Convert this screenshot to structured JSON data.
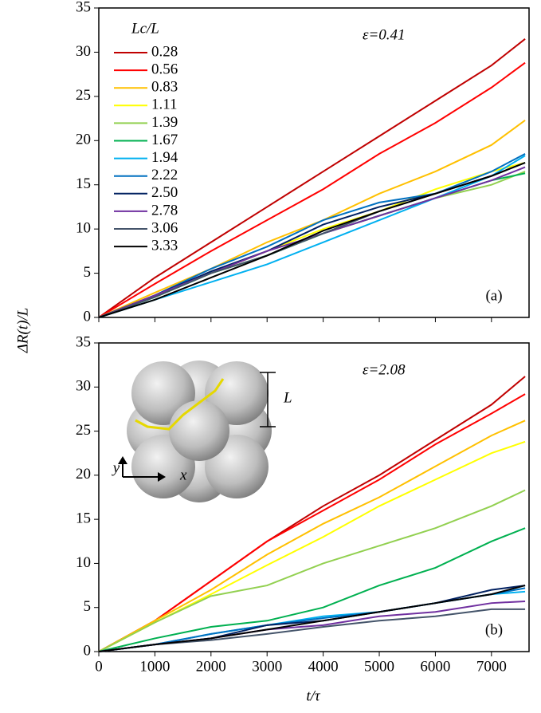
{
  "chart_data": [
    {
      "type": "line",
      "ylabel": "ΔR(t)/L",
      "legend_title": "Lc/L",
      "annotation": "ε=0.41",
      "panel_label": "(a)",
      "x": [
        0,
        1000,
        2000,
        3000,
        4000,
        5000,
        6000,
        7000,
        7600
      ],
      "xlim": [
        0,
        7670
      ],
      "xticks": [
        0,
        1000,
        2000,
        3000,
        4000,
        5000,
        6000,
        7000
      ],
      "show_xtick_labels": false,
      "ylim": [
        0,
        35
      ],
      "yticks": [
        0,
        5,
        10,
        15,
        20,
        25,
        30,
        35
      ],
      "legend": "upper left",
      "series": [
        {
          "name": "0.28",
          "color": "#c00000",
          "values": [
            0,
            4.5,
            8.5,
            12.5,
            16.5,
            20.5,
            24.5,
            28.5,
            31.5
          ]
        },
        {
          "name": "0.56",
          "color": "#ff0000",
          "values": [
            0,
            3.8,
            7.5,
            11,
            14.5,
            18.5,
            22,
            26,
            28.8
          ]
        },
        {
          "name": "0.83",
          "color": "#ffc000",
          "values": [
            0,
            2.8,
            5.5,
            8.5,
            11,
            14,
            16.5,
            19.5,
            22.3
          ]
        },
        {
          "name": "1.11",
          "color": "#ffff00",
          "values": [
            0,
            2.5,
            5,
            7.5,
            10,
            12,
            14.5,
            16.5,
            17.5
          ]
        },
        {
          "name": "1.39",
          "color": "#92d050",
          "values": [
            0,
            2.3,
            5,
            7,
            9.5,
            11.5,
            13.5,
            15,
            16.5
          ]
        },
        {
          "name": "1.67",
          "color": "#00b050",
          "values": [
            0,
            2.3,
            5,
            7,
            9.5,
            11.5,
            13.5,
            15.5,
            16.3
          ]
        },
        {
          "name": "1.94",
          "color": "#00b0f0",
          "values": [
            0,
            2,
            4,
            6,
            8.5,
            11,
            13.5,
            16,
            18.3
          ]
        },
        {
          "name": "2.22",
          "color": "#0070c0",
          "values": [
            0,
            2.5,
            5.5,
            8,
            11,
            13,
            14,
            16.5,
            18.5
          ]
        },
        {
          "name": "2.50",
          "color": "#002060",
          "values": [
            0,
            2.5,
            5.2,
            7.5,
            10.5,
            12.5,
            14,
            16,
            17.5
          ]
        },
        {
          "name": "2.78",
          "color": "#7030a0",
          "values": [
            0,
            2.5,
            5,
            7.5,
            9.5,
            11.5,
            13.5,
            15.5,
            17
          ]
        },
        {
          "name": "3.06",
          "color": "#44546a",
          "values": [
            0,
            2.3,
            5,
            7,
            9.5,
            12,
            14,
            16,
            17.5
          ]
        },
        {
          "name": "3.33",
          "color": "#000000",
          "values": [
            0,
            2,
            4.5,
            7,
            9.8,
            12,
            14,
            16,
            17.5
          ]
        }
      ]
    },
    {
      "type": "line",
      "xlabel": "t/τ",
      "annotation": "ε=2.08",
      "panel_label": "(b)",
      "inset_labels": [
        "L",
        "y",
        "x"
      ],
      "x": [
        0,
        1000,
        2000,
        3000,
        4000,
        5000,
        6000,
        7000,
        7600
      ],
      "xlim": [
        0,
        7670
      ],
      "xticks": [
        0,
        1000,
        2000,
        3000,
        4000,
        5000,
        6000,
        7000
      ],
      "show_xtick_labels": true,
      "ylim": [
        0,
        35
      ],
      "yticks": [
        0,
        5,
        10,
        15,
        20,
        25,
        30,
        35
      ],
      "series": [
        {
          "color": "#c00000",
          "values": [
            0,
            3.5,
            8,
            12.5,
            16.5,
            20,
            24,
            28,
            31.2
          ]
        },
        {
          "color": "#ff0000",
          "values": [
            0,
            3.5,
            8,
            12.5,
            16,
            19.5,
            23.5,
            27,
            29.2
          ]
        },
        {
          "color": "#ffc000",
          "values": [
            0,
            3.5,
            7,
            11,
            14.5,
            17.5,
            21,
            24.5,
            26.2
          ]
        },
        {
          "color": "#ffff00",
          "values": [
            0,
            3.3,
            6.5,
            9.8,
            13,
            16.5,
            19.5,
            22.5,
            23.8
          ]
        },
        {
          "color": "#92d050",
          "values": [
            0,
            3.3,
            6.3,
            7.5,
            10,
            12,
            14,
            16.5,
            18.3
          ]
        },
        {
          "color": "#00b050",
          "values": [
            0,
            1.5,
            2.8,
            3.5,
            5,
            7.5,
            9.5,
            12.5,
            14
          ]
        },
        {
          "color": "#00b0f0",
          "values": [
            0,
            0.8,
            2,
            3,
            4,
            4.5,
            5.5,
            6.5,
            6.8
          ]
        },
        {
          "color": "#0070c0",
          "values": [
            0,
            0.8,
            2,
            3,
            3.8,
            4.5,
            5.5,
            6.5,
            7.2
          ]
        },
        {
          "color": "#002060",
          "values": [
            0,
            0.8,
            1.5,
            3,
            3.5,
            4.5,
            5.5,
            7,
            7.5
          ]
        },
        {
          "color": "#7030a0",
          "values": [
            0,
            0.8,
            1.5,
            2.5,
            3,
            4,
            4.5,
            5.5,
            5.7
          ]
        },
        {
          "color": "#44546a",
          "values": [
            0,
            0.8,
            1.3,
            2,
            2.8,
            3.5,
            4,
            4.8,
            4.8
          ]
        },
        {
          "color": "#000000",
          "values": [
            0,
            0.8,
            1.5,
            2.5,
            3.5,
            4.5,
            5.5,
            6.5,
            7.5
          ]
        }
      ]
    }
  ]
}
